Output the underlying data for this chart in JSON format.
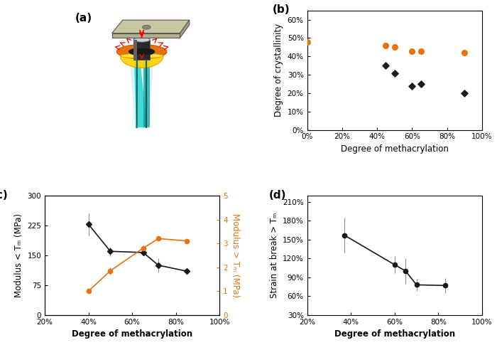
{
  "panel_b": {
    "orange_x": [
      0,
      45,
      50,
      60,
      65,
      90
    ],
    "orange_y": [
      0.48,
      0.46,
      0.45,
      0.43,
      0.43,
      0.42
    ],
    "black_x": [
      45,
      50,
      60,
      65,
      90
    ],
    "black_y": [
      0.35,
      0.31,
      0.24,
      0.25,
      0.2
    ],
    "xlabel": "Degree of methacrylation",
    "ylabel": "Degree of crystallinity",
    "xlim": [
      0,
      1.0
    ],
    "ylim": [
      0,
      0.65
    ],
    "xticks": [
      0,
      0.2,
      0.4,
      0.6,
      0.8,
      1.0
    ],
    "yticks": [
      0,
      0.1,
      0.2,
      0.3,
      0.4,
      0.5,
      0.6
    ]
  },
  "panel_c": {
    "black_x": [
      0.4,
      0.5,
      0.65,
      0.72,
      0.85
    ],
    "black_y": [
      228,
      160,
      157,
      125,
      110
    ],
    "black_yerr": [
      28,
      12,
      8,
      18,
      8
    ],
    "orange_x": [
      0.4,
      0.5,
      0.65,
      0.72,
      0.85
    ],
    "orange_y": [
      1.0,
      1.85,
      2.8,
      3.2,
      3.1
    ],
    "orange_yerr": [
      0.05,
      0.15,
      0.05,
      0.08,
      0.08
    ],
    "xlabel": "Degree of methacrylation",
    "ylabel_left": "Modulus < Tₘ (MPa)",
    "ylabel_right": "Modulus > Tₘ (MPa)",
    "xlim": [
      0.2,
      1.0
    ],
    "ylim_left": [
      0,
      300
    ],
    "ylim_right": [
      0,
      5
    ],
    "xticks": [
      0.2,
      0.4,
      0.6,
      0.8,
      1.0
    ],
    "yticks_left": [
      0,
      75,
      150,
      225,
      300
    ],
    "yticks_right": [
      0,
      1,
      2,
      3,
      4,
      5
    ]
  },
  "panel_d": {
    "black_x": [
      0.37,
      0.6,
      0.65,
      0.7,
      0.83
    ],
    "black_y": [
      1.57,
      1.1,
      1.0,
      0.78,
      0.77
    ],
    "black_yerr": [
      0.28,
      0.14,
      0.2,
      0.1,
      0.12
    ],
    "xlabel": "Degree of methacrylation",
    "ylabel": "Strain at break > Tₘ",
    "xlim": [
      0.2,
      1.0
    ],
    "ylim": [
      0.3,
      2.2
    ],
    "xticks": [
      0.2,
      0.4,
      0.6,
      0.8,
      1.0
    ],
    "yticks": [
      0.3,
      0.6,
      0.9,
      1.2,
      1.5,
      1.8,
      2.1
    ]
  },
  "orange_color": "#E8720C",
  "black_color": "#1a1a1a",
  "gray_color": "#909090",
  "label_fontsize": 8.5,
  "tick_fontsize": 7.5,
  "panel_label_fontsize": 11
}
